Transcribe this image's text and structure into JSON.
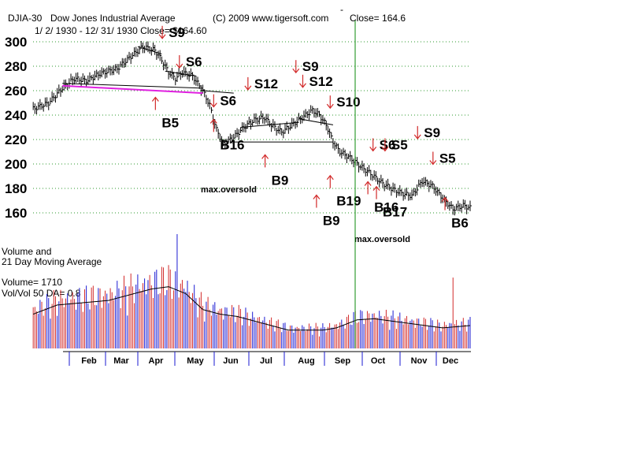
{
  "header": {
    "symbol": "DJIA-30",
    "name": "Dow Jones Industrial Average",
    "copyright": "(C) 2009 www.tigersoft.com",
    "dash": "-",
    "close": "Close=  164.6",
    "range": "1/ 2/ 1930 -  12/ 31/ 1930   Close= $164.60"
  },
  "volume_panel": {
    "title1": "Volume and",
    "title2": "21 Day Moving Average",
    "volume": "Volume= 1710",
    "volratio": "Vol/Vol 50 DA= 0.8"
  },
  "colors": {
    "grid": "#2e9a2e",
    "up": "#d22a2a",
    "down": "#1a1ad2",
    "magenta": "#e020e0",
    "vline": "#0a8a0a"
  },
  "chart_data": {
    "type": "candlestick",
    "title": "DJIA-30  Dow Jones Industrial Average 1930",
    "ylim": [
      150,
      305
    ],
    "ticks": [
      160,
      180,
      200,
      220,
      240,
      260,
      280,
      300
    ],
    "months": [
      "Feb",
      "Mar",
      "Apr",
      "May",
      "Jun",
      "Jul",
      "Aug",
      "Sep",
      "Oct",
      "Nov",
      "Dec"
    ],
    "price_points": [
      [
        1,
        245
      ],
      [
        10,
        250
      ],
      [
        18,
        262
      ],
      [
        25,
        270
      ],
      [
        32,
        268
      ],
      [
        40,
        274
      ],
      [
        50,
        278
      ],
      [
        58,
        288
      ],
      [
        65,
        296
      ],
      [
        72,
        293
      ],
      [
        76,
        285
      ],
      [
        80,
        275
      ],
      [
        84,
        270
      ],
      [
        88,
        275
      ],
      [
        94,
        272
      ],
      [
        100,
        260
      ],
      [
        104,
        248
      ],
      [
        108,
        228
      ],
      [
        112,
        216
      ],
      [
        118,
        222
      ],
      [
        124,
        230
      ],
      [
        130,
        236
      ],
      [
        136,
        238
      ],
      [
        140,
        232
      ],
      [
        146,
        226
      ],
      [
        152,
        232
      ],
      [
        158,
        238
      ],
      [
        164,
        244
      ],
      [
        168,
        240
      ],
      [
        172,
        232
      ],
      [
        176,
        218
      ],
      [
        180,
        210
      ],
      [
        186,
        205
      ],
      [
        192,
        198
      ],
      [
        198,
        192
      ],
      [
        204,
        185
      ],
      [
        210,
        180
      ],
      [
        216,
        176
      ],
      [
        222,
        174
      ],
      [
        228,
        186
      ],
      [
        234,
        182
      ],
      [
        240,
        172
      ],
      [
        246,
        163
      ],
      [
        252,
        166
      ],
      [
        256,
        164
      ]
    ],
    "volume_points": [
      [
        1,
        30
      ],
      [
        15,
        38
      ],
      [
        30,
        40
      ],
      [
        45,
        42
      ],
      [
        60,
        48
      ],
      [
        70,
        52
      ],
      [
        80,
        54
      ],
      [
        90,
        48
      ],
      [
        100,
        34
      ],
      [
        110,
        30
      ],
      [
        120,
        28
      ],
      [
        130,
        24
      ],
      [
        140,
        20
      ],
      [
        150,
        16
      ],
      [
        160,
        16
      ],
      [
        170,
        16
      ],
      [
        178,
        18
      ],
      [
        190,
        25
      ],
      [
        200,
        26
      ],
      [
        210,
        24
      ],
      [
        220,
        22
      ],
      [
        230,
        20
      ],
      [
        240,
        18
      ],
      [
        256,
        20
      ]
    ],
    "price_ma": {
      "label": "",
      "points": []
    },
    "signals": [
      {
        "label": "S9",
        "type": "sell",
        "day": 80,
        "price": 304
      },
      {
        "label": "S6",
        "type": "sell",
        "day": 90,
        "price": 280
      },
      {
        "label": "B5",
        "type": "buy",
        "day": 76,
        "price": 230
      },
      {
        "label": "S12",
        "type": "sell",
        "day": 130,
        "price": 262
      },
      {
        "label": "S6",
        "type": "sell",
        "day": 110,
        "price": 248
      },
      {
        "label": "B16",
        "type": "buy",
        "day": 110,
        "price": 212
      },
      {
        "label": "S9",
        "type": "sell",
        "day": 158,
        "price": 276
      },
      {
        "label": "S12",
        "type": "sell",
        "day": 162,
        "price": 264
      },
      {
        "label": "S10",
        "type": "sell",
        "day": 178,
        "price": 247
      },
      {
        "label": "B9",
        "type": "buy",
        "day": 140,
        "price": 183
      },
      {
        "label": "S6",
        "type": "sell",
        "day": 203,
        "price": 212
      },
      {
        "label": "S5",
        "type": "sell",
        "day": 210,
        "price": 212
      },
      {
        "label": "S9",
        "type": "sell",
        "day": 229,
        "price": 222
      },
      {
        "label": "S5",
        "type": "sell",
        "day": 238,
        "price": 201
      },
      {
        "label": "B19",
        "type": "buy",
        "day": 178,
        "price": 166
      },
      {
        "label": "B16",
        "type": "buy",
        "day": 200,
        "price": 161
      },
      {
        "label": "B17",
        "type": "buy",
        "day": 205,
        "price": 157
      },
      {
        "label": "B9",
        "type": "buy",
        "day": 170,
        "price": 150
      },
      {
        "label": "B6",
        "type": "buy",
        "day": 245,
        "price": 148
      }
    ],
    "annotations": [
      "max.oversold",
      "max.oversold"
    ]
  }
}
